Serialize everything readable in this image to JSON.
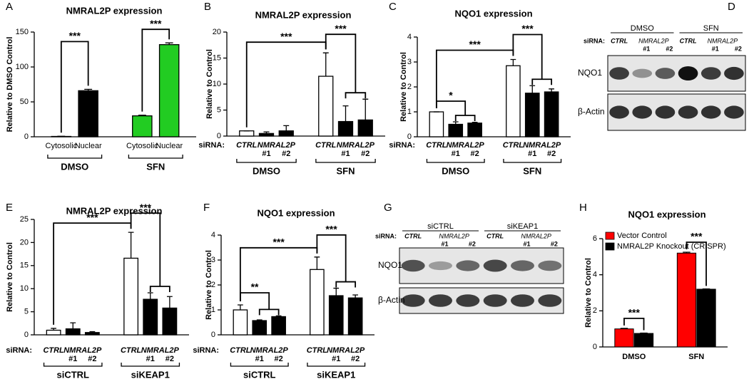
{
  "chart_data": [
    {
      "panel": "A",
      "type": "bar",
      "title": "NMRAL2P expression",
      "ylabel": "Relative to DMSO Control",
      "categories": [
        "Cytosolic",
        "Nuclear",
        "Cytosolic",
        "Nuclear"
      ],
      "groups": [
        "DMSO",
        "SFN"
      ],
      "values": [
        0.5,
        66,
        30,
        132
      ],
      "errors": [
        0.3,
        2,
        1,
        2.5
      ],
      "colors": [
        "#000000",
        "#000000",
        "#22cc22",
        "#22cc22"
      ],
      "ylim": [
        0,
        150
      ],
      "yticks": [
        0,
        50,
        100,
        150
      ],
      "annotations": [
        "***",
        "***"
      ]
    },
    {
      "panel": "B",
      "type": "bar",
      "title": "NMRAL2P expression",
      "ylabel": "Relative to Control",
      "row_label": "siRNA:",
      "categories": [
        "CTRL",
        "#1",
        "#2",
        "CTRL",
        "#1",
        "#2"
      ],
      "sublabels": [
        "NMRAL2P",
        "NMRAL2P"
      ],
      "groups": [
        "DMSO",
        "SFN"
      ],
      "values": [
        1,
        0.5,
        1,
        11.5,
        2.8,
        3.1
      ],
      "errors": [
        0,
        0.3,
        1,
        4.5,
        3,
        4
      ],
      "colors": [
        "#ffffff",
        "#000000",
        "#000000",
        "#ffffff",
        "#000000",
        "#000000"
      ],
      "ylim": [
        0,
        20
      ],
      "yticks": [
        0,
        5,
        10,
        15,
        20
      ],
      "annotations": [
        "***",
        "***"
      ]
    },
    {
      "panel": "C",
      "type": "bar",
      "title": "NQO1 expression",
      "ylabel": "Relative to Control",
      "row_label": "siRNA:",
      "categories": [
        "CTRL",
        "#1",
        "#2",
        "CTRL",
        "#1",
        "#2"
      ],
      "sublabels": [
        "NMRAL2P",
        "NMRAL2P"
      ],
      "groups": [
        "DMSO",
        "SFN"
      ],
      "values": [
        1,
        0.5,
        0.55,
        2.85,
        1.75,
        1.8
      ],
      "errors": [
        0,
        0.1,
        0.03,
        0.25,
        0.3,
        0.12
      ],
      "colors": [
        "#ffffff",
        "#000000",
        "#000000",
        "#ffffff",
        "#000000",
        "#000000"
      ],
      "ylim": [
        0,
        4
      ],
      "yticks": [
        0,
        1,
        2,
        3,
        4
      ],
      "annotations": [
        "***",
        "*",
        "***"
      ]
    },
    {
      "panel": "E",
      "type": "bar",
      "title": "NMRAL2P expression",
      "ylabel": "Relative to Control",
      "row_label": "siRNA:",
      "categories": [
        "CTRL",
        "#1",
        "#2",
        "CTRL",
        "#1",
        "#2"
      ],
      "sublabels": [
        "NMRAL2P",
        "NMRAL2P"
      ],
      "groups": [
        "siCTRL",
        "siKEAP1"
      ],
      "values": [
        1,
        1.3,
        0.5,
        16.6,
        7.7,
        5.8
      ],
      "errors": [
        0.4,
        1.3,
        0.2,
        5.6,
        1.4,
        2.5
      ],
      "colors": [
        "#ffffff",
        "#000000",
        "#000000",
        "#ffffff",
        "#000000",
        "#000000"
      ],
      "ylim": [
        0,
        25
      ],
      "yticks": [
        0,
        5,
        10,
        15,
        20,
        25
      ],
      "annotations": [
        "***",
        "***"
      ]
    },
    {
      "panel": "F",
      "type": "bar",
      "title": "NQO1 expression",
      "ylabel": "Relative to Control",
      "row_label": "siRNA:",
      "categories": [
        "CTRL",
        "#1",
        "#2",
        "CTRL",
        "#1",
        "#2"
      ],
      "sublabels": [
        "NMRAL2P",
        "NMRAL2P"
      ],
      "groups": [
        "siCTRL",
        "siKEAP1"
      ],
      "values": [
        1,
        0.57,
        0.73,
        2.62,
        1.57,
        1.48
      ],
      "errors": [
        0.2,
        0.03,
        0.03,
        0.5,
        0.3,
        0.12
      ],
      "colors": [
        "#ffffff",
        "#000000",
        "#000000",
        "#ffffff",
        "#000000",
        "#000000"
      ],
      "ylim": [
        0,
        4
      ],
      "yticks": [
        0,
        1,
        2,
        3,
        4
      ],
      "annotations": [
        "***",
        "**",
        "***"
      ]
    },
    {
      "panel": "H",
      "type": "grouped_bar",
      "title": "NQO1 expression",
      "ylabel": "Relative to Control",
      "categories": [
        "DMSO",
        "SFN"
      ],
      "legend": "upper left",
      "series": [
        {
          "name": "Vector Control",
          "color": "#ff0000",
          "values": [
            1,
            5.2
          ],
          "errors": [
            0.03,
            0.05
          ]
        },
        {
          "name": "NMRAL2P Knockout (CRISPR)",
          "color": "#000000",
          "values": [
            0.75,
            3.2
          ],
          "errors": [
            0.02,
            0.02
          ]
        }
      ],
      "ylim": [
        0,
        6
      ],
      "yticks": [
        0,
        2,
        4,
        6
      ],
      "annotations": [
        "***",
        "***"
      ]
    }
  ],
  "blots": [
    {
      "panel": "D",
      "groups": [
        "DMSO",
        "SFN"
      ],
      "row_label": "siRNA:",
      "lanes": [
        "CTRL",
        "#1",
        "#2",
        "CTRL",
        "#1",
        "#2"
      ],
      "sublabels": [
        "NMRAL2P",
        "NMRAL2P"
      ],
      "bands": [
        "NQO1",
        "β-Actin"
      ]
    },
    {
      "panel": "G",
      "groups": [
        "siCTRL",
        "siKEAP1"
      ],
      "row_label": "siRNA:",
      "lanes": [
        "CTRL",
        "#1",
        "#2",
        "CTRL",
        "#1",
        "#2"
      ],
      "sublabels": [
        "NMRAL2P",
        "NMRAL2P"
      ],
      "bands": [
        "NQO1",
        "β-Actin"
      ]
    }
  ]
}
